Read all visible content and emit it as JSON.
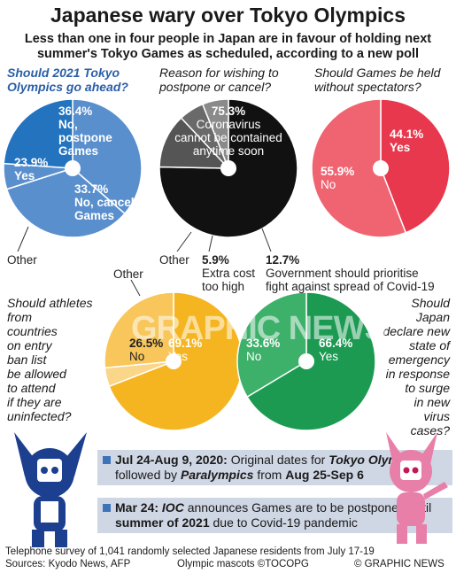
{
  "title": "Japanese wary over Tokyo Olympics",
  "subtitle": "Less than one in four people in Japan are in favour of holding next summer's Tokyo Games as scheduled, according to a new poll",
  "chart_data": [
    {
      "type": "pie",
      "question": "Should 2021 Tokyo Olympics go ahead?",
      "slices": [
        {
          "label": "No, postpone Games",
          "value": 36.4,
          "color": "#5a8fce"
        },
        {
          "label": "No, cancel Games",
          "value": 33.7,
          "color": "#5a8fce"
        },
        {
          "label": "Other",
          "value": 6.0,
          "color": "#5a8fce"
        },
        {
          "label": "Yes",
          "value": 23.9,
          "color": "#2373bf"
        }
      ]
    },
    {
      "type": "pie",
      "question": "Reason for wishing to postpone or cancel?",
      "slices": [
        {
          "label": "Coronavirus cannot be contained anytime soon",
          "value": 75.3,
          "color": "#111111"
        },
        {
          "label": "Government should prioritise fight against spread of Covid-19",
          "value": 12.7,
          "color": "#555555"
        },
        {
          "label": "Extra cost too high",
          "value": 5.9,
          "color": "#6a6a6a"
        },
        {
          "label": "Other",
          "value": 6.1,
          "color": "#8a8a8a"
        }
      ]
    },
    {
      "type": "pie",
      "question": "Should Games be held without spectators?",
      "slices": [
        {
          "label": "Yes",
          "value": 44.1,
          "color": "#e8384d"
        },
        {
          "label": "No",
          "value": 55.9,
          "color": "#f06472"
        }
      ]
    },
    {
      "type": "pie",
      "question": "Should athletes from countries on entry ban list be allowed to attend if they are uninfected?",
      "slices": [
        {
          "label": "Yes",
          "value": 69.1,
          "color": "#f5b521"
        },
        {
          "label": "Other",
          "value": 4.4,
          "color": "#f9d68a"
        },
        {
          "label": "No",
          "value": 26.5,
          "color": "#f8c65a"
        }
      ]
    },
    {
      "type": "pie",
      "question": "Should Japan declare new state of emergency in response to surge in new virus cases?",
      "slices": [
        {
          "label": "Yes",
          "value": 66.4,
          "color": "#1c9a52"
        },
        {
          "label": "No",
          "value": 33.6,
          "color": "#3db06a"
        }
      ]
    }
  ],
  "labels": {
    "p1_postpone_pct": "36.4%",
    "p1_postpone_l1": "No,",
    "p1_postpone_l2": "postpone",
    "p1_postpone_l3": "Games",
    "p1_cancel_pct": "33.7%",
    "p1_cancel_l1": "No, cancel",
    "p1_cancel_l2": "Games",
    "p1_yes_pct": "23.9%",
    "p1_yes": "Yes",
    "p1_other": "Other",
    "p2_q1": "Reason for wishing to",
    "p2_q2": "postpone or cancel?",
    "p2_main_pct": "75.3%",
    "p2_main_l1": "Coronavirus",
    "p2_main_l2": "cannot be contained",
    "p2_main_l3": "anytime soon",
    "p2_other": "Other",
    "p2_cost_pct": "5.9%",
    "p2_cost_l1": "Extra cost",
    "p2_cost_l2": "too high",
    "p2_gov_pct": "12.7%",
    "p2_gov_l1": "Government should prioritise",
    "p2_gov_l2": "fight against spread of Covid-19",
    "p3_q1": "Should Games be held",
    "p3_q2": "without spectators?",
    "p3_yes_pct": "44.1%",
    "p3_yes": "Yes",
    "p3_no_pct": "55.9%",
    "p3_no": "No",
    "p4_q": [
      "Should athletes",
      "from",
      "countries",
      "on entry",
      "ban list",
      "be allowed",
      "to attend",
      "if they are",
      "uninfected?"
    ],
    "p4_other": "Other",
    "p4_no_pct": "26.5%",
    "p4_no": "No",
    "p4_yes_pct": "69.1%",
    "p4_yes": "Yes",
    "p5_q": [
      "Should Japan",
      "declare new",
      "state of",
      "emergency",
      "in response",
      "to surge",
      "in new",
      "virus",
      "cases?"
    ],
    "p5_no_pct": "33.6%",
    "p5_no": "No",
    "p5_yes_pct": "66.4%",
    "p5_yes": "Yes",
    "p1_q1": "Should 2021 Tokyo",
    "p1_q2": "Olympics go ahead?"
  },
  "timeline": [
    {
      "date": "Jul 24-Aug 9, 2020:",
      "t1": " Original dates for ",
      "em1": "Tokyo Olympics",
      "t2": ", followed by ",
      "em2": "Paralympics",
      "t3": " from ",
      "b3": "Aug 25-Sep 6"
    },
    {
      "date": "Mar 24:",
      "em1": "IOC",
      "t1": " announces Games are to be postponed until ",
      "b1": "summer of 2021",
      "t2": " due to Covid-19 pandemic"
    }
  ],
  "watermark": "GRAPHIC NEWS",
  "footer": {
    "note": "Telephone survey of 1,041 randomly selected Japanese residents from July 17-19",
    "sources": "Sources: Kyodo News, AFP",
    "mascots": "Olympic mascots ©TOCOPG",
    "credit": "© GRAPHIC NEWS"
  }
}
